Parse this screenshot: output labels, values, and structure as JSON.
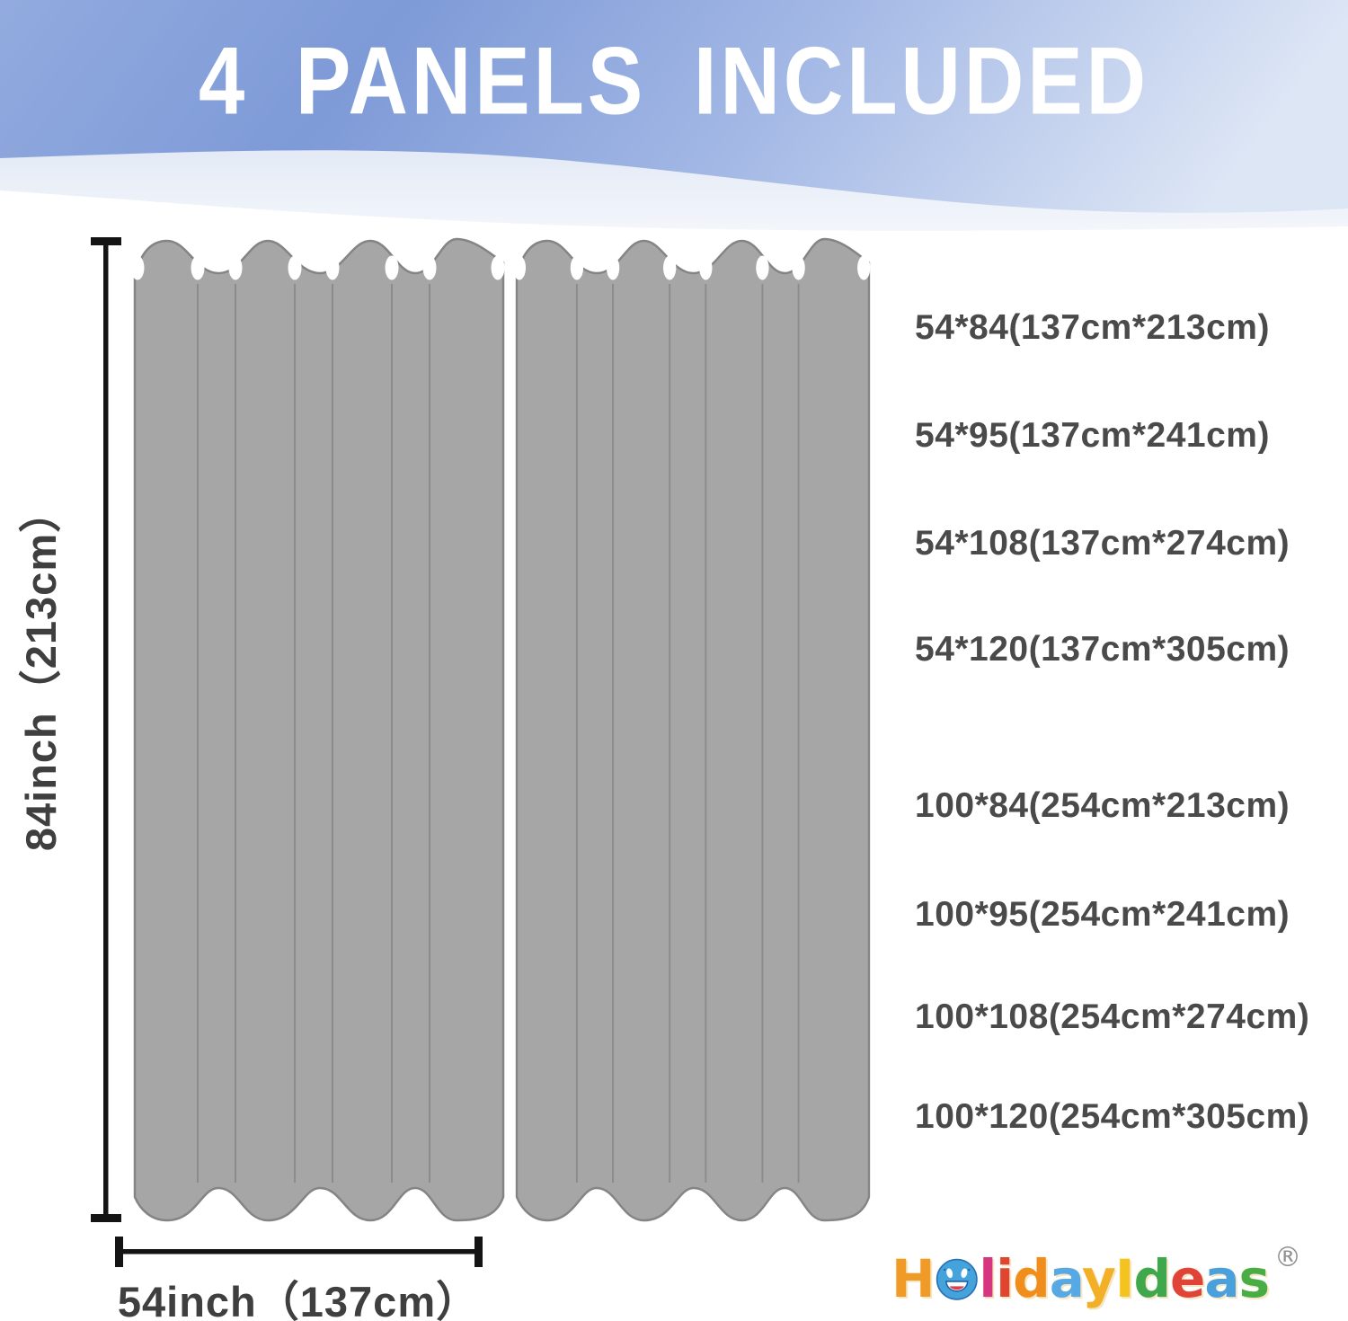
{
  "header": {
    "title": "4 PANELS INCLUDED"
  },
  "diagram": {
    "panel_count": 2,
    "height_label": "84inch（213cm）",
    "width_label": "54inch（137cm）"
  },
  "size_list": {
    "group_54": [
      "54*84(137cm*213cm)",
      "54*95(137cm*241cm)",
      "54*108(137cm*274cm)",
      "54*120(137cm*305cm)"
    ],
    "group_100": [
      "100*84(254cm*213cm)",
      "100*95(254cm*241cm)",
      "100*108(254cm*274cm)",
      "100*120(254cm*305cm)"
    ]
  },
  "brand": {
    "name": "HolidayIdeas",
    "registered_mark": "®",
    "letters": [
      {
        "ch": "H",
        "color": "#f09a28"
      },
      {
        "ch": "o",
        "color": "#45a3dc",
        "type": "smiley"
      },
      {
        "ch": "l",
        "color": "#d6367f"
      },
      {
        "ch": "i",
        "color": "#e2452f"
      },
      {
        "ch": "d",
        "color": "#ef8d1d"
      },
      {
        "ch": "a",
        "color": "#57a9e6"
      },
      {
        "ch": "y",
        "color": "#f2b028"
      },
      {
        "ch": "I",
        "color": "#f4c31f"
      },
      {
        "ch": "d",
        "color": "#3fa84c"
      },
      {
        "ch": "e",
        "color": "#e04438"
      },
      {
        "ch": "a",
        "color": "#4aa0dc"
      },
      {
        "ch": "s",
        "color": "#49ad45"
      }
    ]
  },
  "colors": {
    "header_blue": "#7e9ad7",
    "header_blue_pale": "#dde6f5",
    "curtain_gray": "#a6a6a6",
    "curtain_outline": "#848484",
    "dimension_black": "#141414",
    "text_gray": "#4a4a4a"
  }
}
